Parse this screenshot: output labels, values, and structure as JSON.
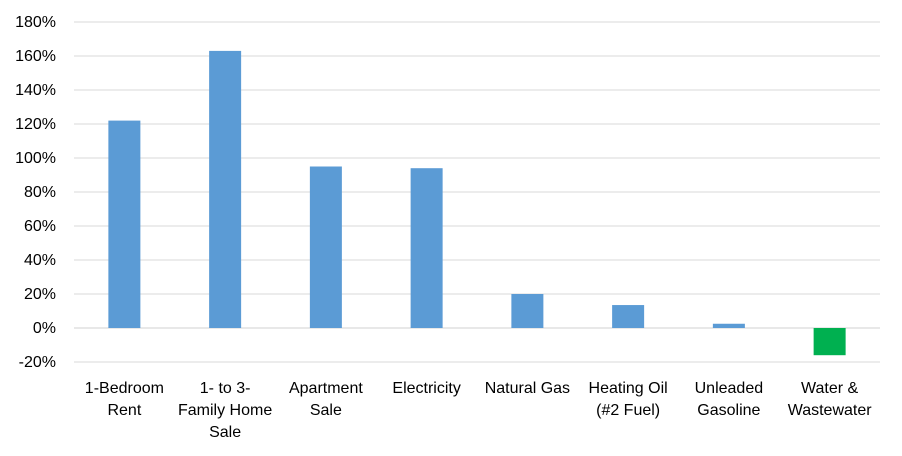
{
  "chart_data": {
    "type": "bar",
    "title": "",
    "xlabel": "",
    "ylabel": "",
    "categories": [
      [
        "1-Bedroom",
        "Rent"
      ],
      [
        "1- to 3-",
        "Family Home",
        "Sale"
      ],
      [
        "Apartment",
        "Sale"
      ],
      [
        "Electricity"
      ],
      [
        "Natural Gas"
      ],
      [
        "Heating Oil",
        "(#2 Fuel)"
      ],
      [
        "Unleaded",
        "Gasoline"
      ],
      [
        "Water &",
        "Wastewater"
      ]
    ],
    "values": [
      122,
      163,
      95,
      94,
      20,
      13.5,
      2.5,
      -16
    ],
    "value_unit": "%",
    "ylim": [
      -20,
      180
    ],
    "y_ticks": [
      "180%",
      "160%",
      "140%",
      "120%",
      "100%",
      "80%",
      "60%",
      "40%",
      "20%",
      "0%",
      "-20%"
    ],
    "y_tick_values": [
      180,
      160,
      140,
      120,
      100,
      80,
      60,
      40,
      20,
      0,
      -20
    ],
    "grid": true,
    "legend": "none",
    "colors": {
      "positive": "#5b9bd5",
      "negative": "#00b050",
      "grid": "#d9d9d9"
    }
  }
}
